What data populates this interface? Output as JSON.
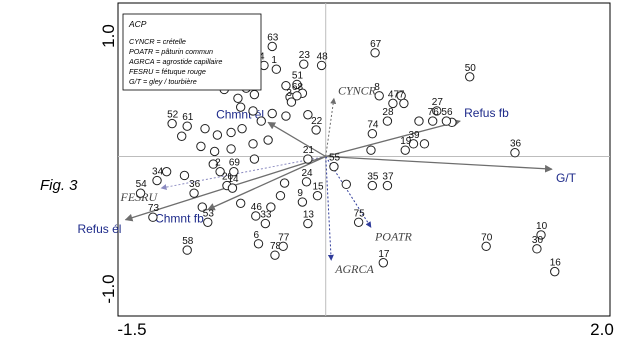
{
  "figure": {
    "label": "Fig. 3"
  },
  "legend": {
    "title": "ACP",
    "lines": [
      "CYNCR = crételle",
      "POATR = pâturin commun",
      "AGRCA = agrostide capillaire",
      "FESRU = fétuque rouge",
      "G/T = gley / tourbière"
    ]
  },
  "chart_data": {
    "type": "scatter",
    "title": "",
    "xlabel": "",
    "ylabel": "",
    "xlim": [
      -1.5,
      2.0
    ],
    "ylim": [
      -1.0,
      1.0
    ],
    "xticks": [
      "-1.5",
      "2.0"
    ],
    "yticks": [
      "1.0",
      "-1.0"
    ],
    "grid": false,
    "points": [
      {
        "label": "63",
        "x": -0.39,
        "y": 0.87
      },
      {
        "label": "67",
        "x": 0.36,
        "y": 0.82
      },
      {
        "label": "48",
        "x": -0.03,
        "y": 0.72
      },
      {
        "label": "23",
        "x": -0.16,
        "y": 0.73
      },
      {
        "label": "4",
        "x": -0.45,
        "y": 0.72
      },
      {
        "label": "1",
        "x": -0.36,
        "y": 0.69
      },
      {
        "label": "50",
        "x": 1.05,
        "y": 0.63
      },
      {
        "label": "0",
        "x": -0.74,
        "y": 0.53
      },
      {
        "label": "12",
        "x": -0.58,
        "y": 0.54
      },
      {
        "label": "51",
        "x": -0.21,
        "y": 0.57
      },
      {
        "label": "45",
        "x": -0.52,
        "y": 0.49
      },
      {
        "label": "3",
        "x": -0.25,
        "y": 0.43
      },
      {
        "label": "68",
        "x": -0.21,
        "y": 0.48
      },
      {
        "label": "8",
        "x": 0.39,
        "y": 0.48
      },
      {
        "label": "47",
        "x": 0.49,
        "y": 0.42
      },
      {
        "label": "7",
        "x": 0.57,
        "y": 0.42
      },
      {
        "label": "27",
        "x": 0.81,
        "y": 0.36
      },
      {
        "label": "28",
        "x": 0.45,
        "y": 0.28
      },
      {
        "label": "22",
        "x": -0.07,
        "y": 0.21
      },
      {
        "label": "74",
        "x": 0.34,
        "y": 0.18
      },
      {
        "label": "76",
        "x": 0.78,
        "y": 0.28
      },
      {
        "label": "56",
        "x": 0.88,
        "y": 0.28
      },
      {
        "label": "39",
        "x": 0.64,
        "y": 0.1
      },
      {
        "label": "19",
        "x": 0.58,
        "y": 0.05
      },
      {
        "label": "36",
        "x": 1.38,
        "y": 0.03
      },
      {
        "label": "55",
        "x": 0.06,
        "y": -0.08
      },
      {
        "label": "35",
        "x": 0.34,
        "y": -0.23
      },
      {
        "label": "37",
        "x": 0.45,
        "y": -0.23
      },
      {
        "label": "21",
        "x": -0.13,
        "y": -0.02
      },
      {
        "label": "24",
        "x": -0.14,
        "y": -0.2
      },
      {
        "label": "15",
        "x": -0.06,
        "y": -0.31
      },
      {
        "label": "2",
        "x": -0.77,
        "y": -0.12
      },
      {
        "label": "52",
        "x": -1.12,
        "y": 0.26
      },
      {
        "label": "61",
        "x": -1.01,
        "y": 0.24
      },
      {
        "label": "34",
        "x": -1.23,
        "y": -0.19
      },
      {
        "label": "54",
        "x": -1.35,
        "y": -0.29
      },
      {
        "label": "36",
        "x": -0.96,
        "y": -0.29
      },
      {
        "label": "20",
        "x": -0.72,
        "y": -0.23
      },
      {
        "label": "69",
        "x": -0.67,
        "y": -0.12
      },
      {
        "label": "14",
        "x": -0.68,
        "y": -0.25
      },
      {
        "label": "53",
        "x": -0.86,
        "y": -0.52
      },
      {
        "label": "73",
        "x": -1.26,
        "y": -0.48
      },
      {
        "label": "58",
        "x": -1.01,
        "y": -0.74
      },
      {
        "label": "46",
        "x": -0.51,
        "y": -0.47
      },
      {
        "label": "33",
        "x": -0.44,
        "y": -0.53
      },
      {
        "label": "9",
        "x": -0.17,
        "y": -0.36
      },
      {
        "label": "13",
        "x": -0.13,
        "y": -0.53
      },
      {
        "label": "6",
        "x": -0.49,
        "y": -0.69
      },
      {
        "label": "78",
        "x": -0.37,
        "y": -0.78
      },
      {
        "label": "77",
        "x": -0.31,
        "y": -0.71
      },
      {
        "label": "75",
        "x": 0.24,
        "y": -0.52
      },
      {
        "label": "17",
        "x": 0.42,
        "y": -0.84
      },
      {
        "label": "70",
        "x": 1.17,
        "y": -0.71
      },
      {
        "label": "10",
        "x": 1.57,
        "y": -0.62
      },
      {
        "label": "30",
        "x": 1.54,
        "y": -0.73
      },
      {
        "label": "16",
        "x": 1.67,
        "y": -0.91
      }
    ],
    "extra_circles": [
      {
        "x": -0.52,
        "y": 0.63
      },
      {
        "x": -0.64,
        "y": 0.46
      },
      {
        "x": -0.62,
        "y": 0.39
      },
      {
        "x": -0.53,
        "y": 0.36
      },
      {
        "x": -0.39,
        "y": 0.34
      },
      {
        "x": -0.47,
        "y": 0.28
      },
      {
        "x": -0.61,
        "y": 0.22
      },
      {
        "x": -0.69,
        "y": 0.19
      },
      {
        "x": -0.79,
        "y": 0.17
      },
      {
        "x": -0.88,
        "y": 0.22
      },
      {
        "x": -1.05,
        "y": 0.16
      },
      {
        "x": -0.91,
        "y": 0.08
      },
      {
        "x": -0.81,
        "y": 0.04
      },
      {
        "x": -0.69,
        "y": 0.06
      },
      {
        "x": -0.53,
        "y": 0.1
      },
      {
        "x": -0.42,
        "y": 0.13
      },
      {
        "x": -0.52,
        "y": -0.02
      },
      {
        "x": -0.82,
        "y": -0.06
      },
      {
        "x": -1.16,
        "y": -0.12
      },
      {
        "x": -1.03,
        "y": -0.15
      },
      {
        "x": -0.9,
        "y": -0.4
      },
      {
        "x": -0.62,
        "y": -0.37
      },
      {
        "x": -0.33,
        "y": -0.31
      },
      {
        "x": -0.4,
        "y": -0.4
      },
      {
        "x": -0.3,
        "y": -0.21
      },
      {
        "x": 0.15,
        "y": -0.22
      },
      {
        "x": 0.55,
        "y": 0.48
      },
      {
        "x": 0.68,
        "y": 0.28
      },
      {
        "x": 0.72,
        "y": 0.1
      },
      {
        "x": 0.92,
        "y": 0.27
      },
      {
        "x": 0.33,
        "y": 0.05
      },
      {
        "x": -0.29,
        "y": 0.56
      },
      {
        "x": -0.17,
        "y": 0.5
      },
      {
        "x": -0.26,
        "y": 0.47
      },
      {
        "x": -0.13,
        "y": 0.33
      },
      {
        "x": -0.29,
        "y": 0.32
      }
    ],
    "vectors": [
      {
        "label": "CYNCR",
        "x": 0.06,
        "y": 0.46,
        "color": "#6e6e6e",
        "style": "species"
      },
      {
        "label": "POATR",
        "x": 0.33,
        "y": -0.56,
        "color": "#2f3b9a",
        "style": "species"
      },
      {
        "label": "AGRCA",
        "x": 0.04,
        "y": -0.82,
        "color": "#2f3b9a",
        "style": "species"
      },
      {
        "label": "FESRU",
        "x": -1.2,
        "y": -0.25,
        "color": "#8a8ac0",
        "style": "species"
      },
      {
        "label": "Refus fb",
        "x": 0.98,
        "y": 0.28,
        "color": "#6e6e6e",
        "style": "factor"
      },
      {
        "label": "Chmnt él",
        "x": -0.42,
        "y": 0.27,
        "color": "#6e6e6e",
        "style": "factor"
      },
      {
        "label": "G/T",
        "x": 1.65,
        "y": -0.1,
        "color": "#6e6e6e",
        "style": "factor"
      },
      {
        "label": "Chmnt fb",
        "x": -0.86,
        "y": -0.42,
        "color": "#6e6e6e",
        "style": "factor"
      },
      {
        "label": "Refus él",
        "x": -1.46,
        "y": -0.5,
        "color": "#6e6e6e",
        "style": "factor"
      }
    ]
  }
}
